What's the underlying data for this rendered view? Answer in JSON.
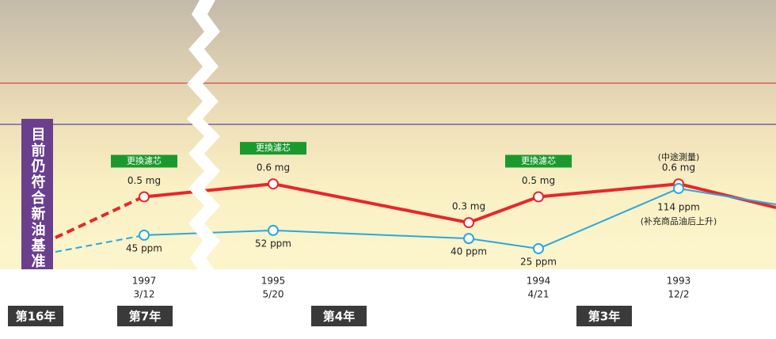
{
  "chart_data": {
    "type": "line",
    "years": [
      "1997",
      "1995",
      null,
      "1994",
      "1993"
    ],
    "dates": [
      "3/12",
      "5/20",
      null,
      "4/21",
      "12/2"
    ],
    "series": [
      {
        "name": "mg",
        "color": "#e8262b",
        "values": [
          0.5,
          0.6,
          0.3,
          0.5,
          0.6
        ],
        "value_labels": [
          "0.5 mg",
          "0.6 mg",
          "0.3 mg",
          "0.5 mg",
          "0.6 mg"
        ]
      },
      {
        "name": "ppm",
        "color": "#29a8e0",
        "values": [
          45,
          52,
          40,
          25,
          114
        ],
        "value_labels": [
          "45 ppm",
          "52 ppm",
          "40 ppm",
          "25 ppm",
          "114 ppm"
        ]
      }
    ],
    "filter_change_label": "更換濾芯",
    "filter_change_at": [
      0,
      1,
      3
    ],
    "note_above": "(中途測量)",
    "note_below": "(补充商品油后上升)",
    "side_label": "目前仍符合新油基准",
    "periods": [
      "第16年",
      "第7年",
      "第4年",
      "第3年"
    ]
  }
}
